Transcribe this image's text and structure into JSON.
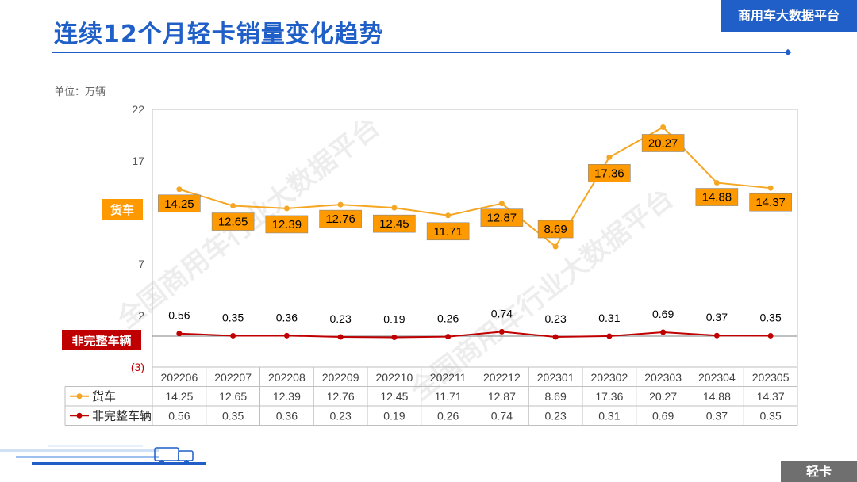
{
  "header": {
    "title": "连续12个月轻卡销量变化趋势",
    "brand": "商用车大数据平台",
    "unit_label": "单位：万辆",
    "watermark": "全国商用车行业大数据平台",
    "footer_tag": "轻卡"
  },
  "colors": {
    "brand_blue": "#1f5fc7",
    "truck_orange": "#f5a623",
    "truck_label_bg": "#ff9900",
    "incomplete_red": "#c00000",
    "footer_gray": "#6f6f6f"
  },
  "chart_data": {
    "type": "line",
    "title": "连续12个月轻卡销量变化趋势",
    "ylabel": "万辆",
    "ylim": [
      -3,
      22
    ],
    "yticks": [
      "22",
      "17",
      "7",
      "2",
      "(3)"
    ],
    "categories": [
      "202206",
      "202207",
      "202208",
      "202209",
      "202210",
      "202211",
      "202212",
      "202301",
      "202302",
      "202303",
      "202304",
      "202305"
    ],
    "series": [
      {
        "name": "货车",
        "values": [
          14.25,
          12.65,
          12.39,
          12.76,
          12.45,
          11.71,
          12.87,
          8.69,
          17.36,
          20.27,
          14.88,
          14.37
        ],
        "labels": [
          "14.25",
          "12.65",
          "12.39",
          "12.76",
          "12.45",
          "11.71",
          "12.87",
          "8.69",
          "17.36",
          "20.27",
          "14.88",
          "14.37"
        ]
      },
      {
        "name": "非完整车辆",
        "values": [
          0.56,
          0.35,
          0.36,
          0.23,
          0.19,
          0.26,
          0.74,
          0.23,
          0.31,
          0.69,
          0.37,
          0.35
        ],
        "labels": [
          "0.56",
          "0.35",
          "0.36",
          "0.23",
          "0.19",
          "0.26",
          "0.74",
          "0.23",
          "0.31",
          "0.69",
          "0.37",
          "0.35"
        ]
      }
    ],
    "series_tags": [
      "货车",
      "非完整车辆"
    ]
  }
}
